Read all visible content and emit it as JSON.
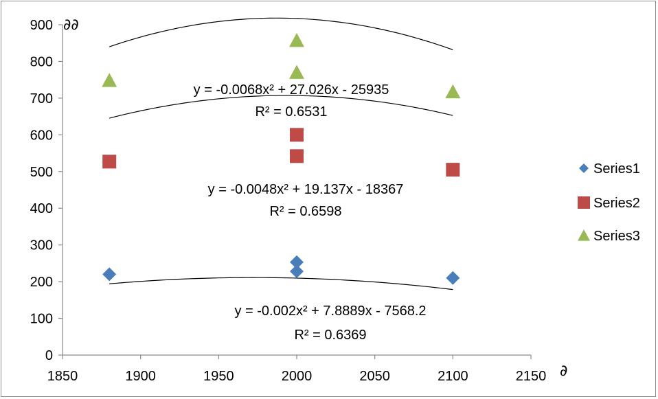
{
  "chart_data": {
    "type": "scatter",
    "xlim": [
      1850,
      2150
    ],
    "ylim": [
      0,
      900
    ],
    "xticks": [
      1850,
      1900,
      1950,
      2000,
      2050,
      2100,
      2150
    ],
    "yticks": [
      0,
      100,
      200,
      300,
      400,
      500,
      600,
      700,
      800,
      900
    ],
    "xlabel": "∂",
    "ylabel": "∂∂",
    "grid": false,
    "legend_position": "right",
    "series": [
      {
        "name": "Series1",
        "marker": "diamond",
        "color": "#4a7ebb",
        "points": [
          [
            1880,
            220
          ],
          [
            2000,
            253
          ],
          [
            2000,
            228
          ],
          [
            2100,
            210
          ]
        ],
        "trendline": {
          "type": "polynomial-2",
          "coefficients": [
            -0.002,
            7.8889,
            -7568.2
          ],
          "equation": "y = -0.002x² + 7.8889x - 7568.2",
          "r2": "R² = 0.6369"
        }
      },
      {
        "name": "Series2",
        "marker": "square",
        "color": "#be4b48",
        "points": [
          [
            1880,
            527
          ],
          [
            2000,
            600
          ],
          [
            2000,
            542
          ],
          [
            2100,
            505
          ]
        ],
        "trendline": {
          "type": "polynomial-2",
          "coefficients": [
            -0.0048,
            19.137,
            -18367
          ],
          "equation": "y = -0.0048x² + 19.137x - 18367",
          "r2": "R² = 0.6598"
        }
      },
      {
        "name": "Series3",
        "marker": "triangle",
        "color": "#98b954",
        "points": [
          [
            1880,
            748
          ],
          [
            2000,
            857
          ],
          [
            2000,
            770
          ],
          [
            2100,
            717
          ]
        ],
        "trendline": {
          "type": "polynomial-2",
          "coefficients": [
            -0.0068,
            27.026,
            -25935
          ],
          "equation": "y = -0.0068x² + 27.026x - 25935",
          "r2": "R² = 0.6531"
        }
      }
    ]
  }
}
